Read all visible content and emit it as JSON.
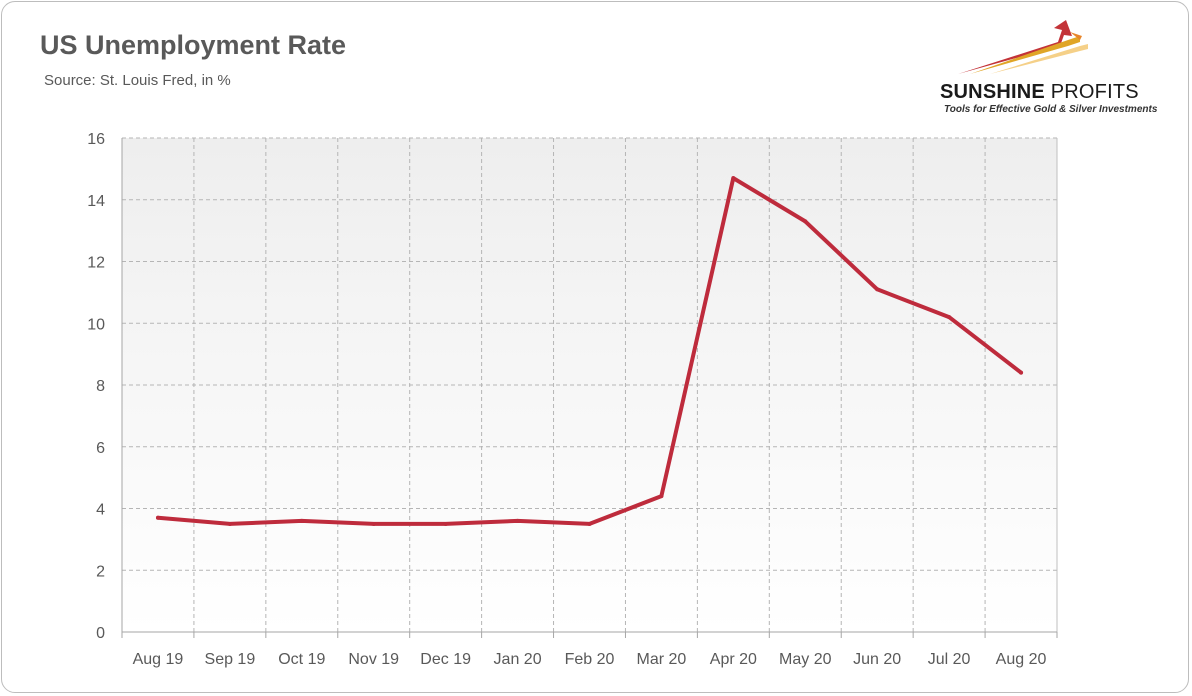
{
  "header": {
    "title": "US Unemployment Rate",
    "subtitle": "Source: St. Louis Fred, in %"
  },
  "logo": {
    "brand_bold": "SUNSHINE",
    "brand_light": "PROFITS",
    "tagline": "Tools for Effective Gold & Silver Investments",
    "colors": {
      "red": "#c0282d",
      "gold": "#e0a526",
      "orange": "#e8862a"
    }
  },
  "chart_data": {
    "type": "line",
    "title": "US Unemployment Rate",
    "subtitle": "Source: St. Louis Fred, in %",
    "categories": [
      "Aug 19",
      "Sep 19",
      "Oct 19",
      "Nov 19",
      "Dec 19",
      "Jan 20",
      "Feb 20",
      "Mar 20",
      "Apr 20",
      "May 20",
      "Jun 20",
      "Jul 20",
      "Aug 20"
    ],
    "series": [
      {
        "values": [
          3.7,
          3.5,
          3.6,
          3.5,
          3.5,
          3.6,
          3.5,
          4.4,
          14.7,
          13.3,
          11.1,
          10.2,
          8.4
        ]
      }
    ],
    "ylim": [
      0,
      16
    ],
    "yticks": [
      0,
      2,
      4,
      6,
      8,
      10,
      12,
      14,
      16
    ],
    "xlabel": "",
    "ylabel": "",
    "grid": true,
    "legend": "none",
    "line_color": "#be2b3c",
    "plot_background": "gradient-light-gray"
  }
}
